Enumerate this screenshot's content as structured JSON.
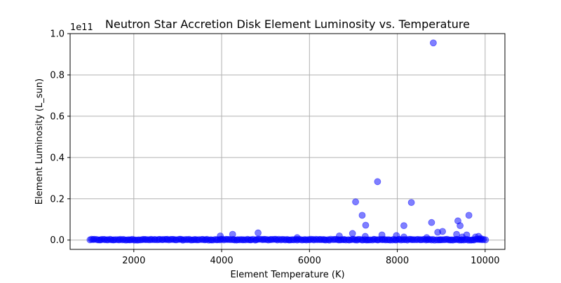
{
  "colors": {
    "point_fill": "#0000ff",
    "grid": "#b0b0b0",
    "axis": "#000000",
    "background": "#ffffff"
  },
  "chart_data": {
    "type": "scatter",
    "title": "Neutron Star Accretion Disk Element Luminosity vs. Temperature",
    "xlabel": "Element Temperature (K)",
    "ylabel": "Element Luminosity (L_sun)",
    "y_offset_label": "1e11",
    "xlim": [
      550,
      10450
    ],
    "ylim": [
      -0.045,
      1.0
    ],
    "y_scale_factor": 100000000000.0,
    "xticks": [
      2000,
      4000,
      6000,
      8000,
      10000
    ],
    "yticks": [
      0.0,
      0.2,
      0.4,
      0.6,
      0.8,
      1.0
    ],
    "xtick_labels": [
      "2000",
      "4000",
      "6000",
      "8000",
      "10000"
    ],
    "ytick_labels": [
      "0.0",
      "0.2",
      "0.4",
      "0.6",
      "0.8",
      "1.0"
    ],
    "grid": true,
    "point_alpha": 0.5,
    "outliers": [
      {
        "x": 3970,
        "y": 0.02
      },
      {
        "x": 4250,
        "y": 0.028
      },
      {
        "x": 4830,
        "y": 0.035
      },
      {
        "x": 5720,
        "y": 0.012
      },
      {
        "x": 6680,
        "y": 0.02
      },
      {
        "x": 6980,
        "y": 0.032
      },
      {
        "x": 7050,
        "y": 0.185
      },
      {
        "x": 7200,
        "y": 0.12
      },
      {
        "x": 7280,
        "y": 0.072
      },
      {
        "x": 7270,
        "y": 0.018
      },
      {
        "x": 7550,
        "y": 0.283
      },
      {
        "x": 7650,
        "y": 0.025
      },
      {
        "x": 7980,
        "y": 0.022
      },
      {
        "x": 8150,
        "y": 0.07
      },
      {
        "x": 8150,
        "y": 0.015
      },
      {
        "x": 8320,
        "y": 0.182
      },
      {
        "x": 8670,
        "y": 0.012
      },
      {
        "x": 8780,
        "y": 0.085
      },
      {
        "x": 8820,
        "y": 0.955
      },
      {
        "x": 8920,
        "y": 0.038
      },
      {
        "x": 9030,
        "y": 0.042
      },
      {
        "x": 9350,
        "y": 0.028
      },
      {
        "x": 9380,
        "y": 0.093
      },
      {
        "x": 9430,
        "y": 0.07
      },
      {
        "x": 9480,
        "y": 0.015
      },
      {
        "x": 9580,
        "y": 0.025
      },
      {
        "x": 9630,
        "y": 0.12
      },
      {
        "x": 9780,
        "y": 0.015
      },
      {
        "x": 9850,
        "y": 0.018
      },
      {
        "x": 9900,
        "y": 0.008
      }
    ],
    "baseline": {
      "x_start": 1000,
      "x_end": 10000,
      "count": 260,
      "y_max": 0.004
    }
  }
}
